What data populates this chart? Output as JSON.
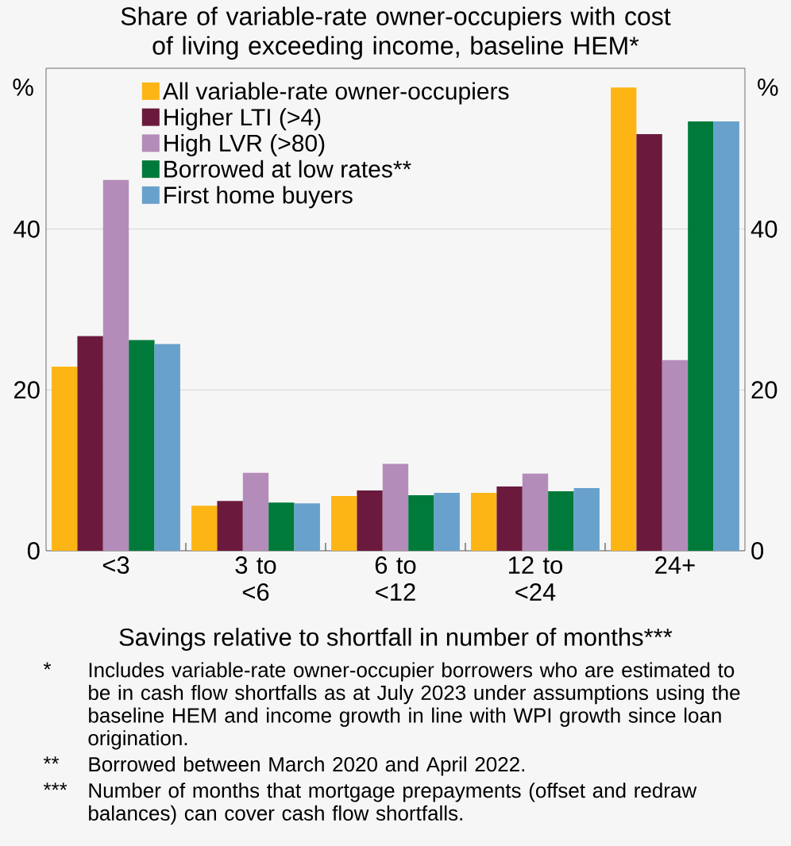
{
  "chart_data": {
    "type": "bar",
    "title": "Share of variable-rate owner-occupiers with cost of living exceeding income, baseline HEM*",
    "categories": [
      "<3",
      "3 to <6",
      "6 to <12",
      "12 to <24",
      "24+"
    ],
    "series": [
      {
        "name": "All variable-rate owner-occupiers",
        "color": "#fdb515",
        "values": [
          22.9,
          5.6,
          6.8,
          7.2,
          57.6
        ]
      },
      {
        "name": "Higher LTI (>4)",
        "color": "#6b1a3e",
        "values": [
          26.7,
          6.2,
          7.5,
          8.0,
          51.8
        ]
      },
      {
        "name": "High LVR (>80)",
        "color": "#b48cb9",
        "values": [
          46.1,
          9.7,
          10.8,
          9.6,
          23.7
        ]
      },
      {
        "name": "Borrowed at low rates**",
        "color": "#007a3a",
        "values": [
          26.2,
          6.0,
          6.9,
          7.4,
          53.4
        ]
      },
      {
        "name": "First home buyers",
        "color": "#68a1cc",
        "values": [
          25.7,
          5.9,
          7.2,
          7.8,
          53.4
        ]
      }
    ],
    "xlabel": "Savings relative to shortfall in number of months***",
    "ylabel": "%",
    "y2label": "%",
    "ylim": [
      0,
      60
    ],
    "yticks": [
      0,
      20,
      40
    ],
    "y2lim": [
      0,
      60
    ],
    "y2ticks": [
      0,
      20,
      40
    ],
    "grid": "y",
    "legend": "top left",
    "annotations": [
      "*",
      "Includes variable-rate owner-occupier borrowers who are estimated to be in cash flow shortfalls as at July 2023 under assumptions using the baseline HEM and income growth in line with WPI growth since loan origination.",
      "**",
      "Borrowed between March 2020 and April 2022.",
      "***",
      "Number of months that mortgage prepayments (offset and redraw balances) can cover cash flow shortfalls."
    ]
  }
}
